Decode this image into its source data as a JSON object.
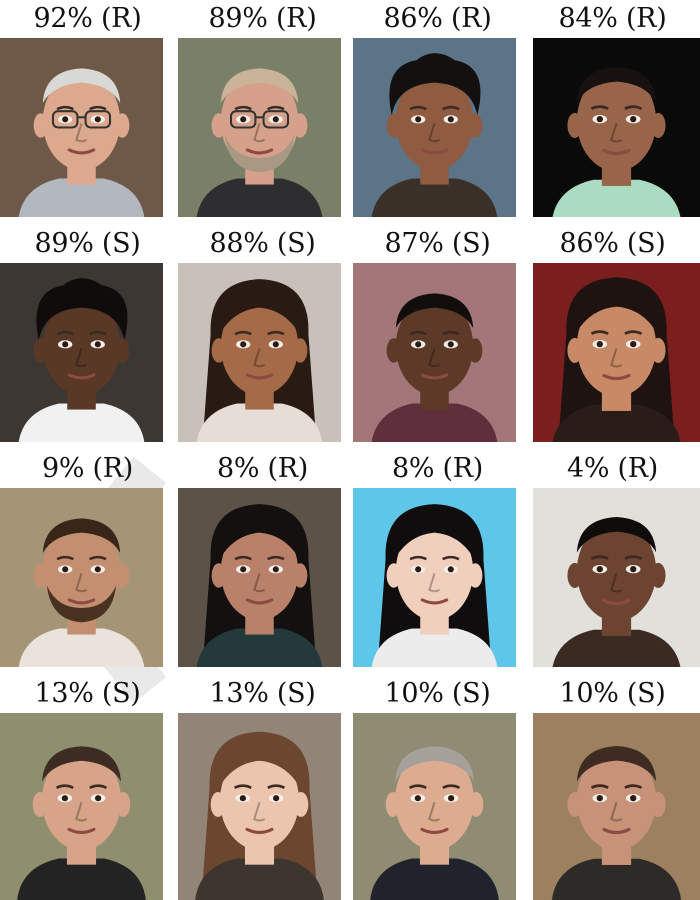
{
  "faces": [
    {
      "label": "92% (R)",
      "bg": "#6e5848",
      "skin": "#dca88e",
      "hair": "#d8d8d4",
      "shirt": "#b3b8bf",
      "hair_style": "short",
      "glasses": true,
      "beard": false
    },
    {
      "label": "89% (R)",
      "bg": "#7a8068",
      "skin": "#d5a18a",
      "hair": "#c9b49a",
      "shirt": "#2e2e30",
      "hair_style": "short",
      "glasses": true,
      "beard": true,
      "beard_color": "#a89884"
    },
    {
      "label": "86% (R)",
      "bg": "#5b7488",
      "skin": "#8f5c42",
      "hair": "#141010",
      "shirt": "#3b3028",
      "hair_style": "curly",
      "glasses": false,
      "beard": false
    },
    {
      "label": "84% (R)",
      "bg": "#0b0a0a",
      "skin": "#99654a",
      "hair": "#17120f",
      "shirt": "#a9dcc1",
      "hair_style": "short",
      "glasses": false,
      "beard": false
    },
    {
      "label": "89% (S)",
      "bg": "#3c3733",
      "skin": "#5a3826",
      "hair": "#0f0c0b",
      "shirt": "#f1f1f1",
      "hair_style": "curly",
      "glasses": false,
      "beard": false
    },
    {
      "label": "88% (S)",
      "bg": "#c7c1ba",
      "skin": "#a56a47",
      "hair": "#2a1a14",
      "shirt": "#e5ddd6",
      "hair_style": "long",
      "glasses": false,
      "beard": false
    },
    {
      "label": "87% (S)",
      "bg": "#a3777a",
      "skin": "#5d3a27",
      "hair": "#120e0c",
      "shirt": "#5f2f3b",
      "hair_style": "short",
      "glasses": false,
      "beard": false
    },
    {
      "label": "86% (S)",
      "bg": "#7a1e1e",
      "skin": "#c88a66",
      "hair": "#1e1310",
      "shirt": "#2a1c18",
      "hair_style": "long",
      "glasses": false,
      "beard": false
    },
    {
      "label": "9% (R)",
      "bg": "#a59577",
      "skin": "#c48e70",
      "hair": "#3a2618",
      "shirt": "#e9e3dc",
      "hair_style": "short",
      "glasses": false,
      "beard": true,
      "beard_color": "#4a3222"
    },
    {
      "label": "8% (R)",
      "bg": "#5c5248",
      "skin": "#b9806a",
      "hair": "#141010",
      "shirt": "#243a3a",
      "hair_style": "long",
      "glasses": false,
      "beard": false
    },
    {
      "label": "8% (R)",
      "bg": "#5ec6e8",
      "skin": "#f1cfbd",
      "hair": "#0f0d0d",
      "shirt": "#ececec",
      "hair_style": "long",
      "glasses": false,
      "beard": false
    },
    {
      "label": "4% (R)",
      "bg": "#e2e0db",
      "skin": "#6d4331",
      "hair": "#100c0b",
      "shirt": "#3a2a22",
      "hair_style": "short",
      "glasses": false,
      "beard": false
    },
    {
      "label": "13% (S)",
      "bg": "#8f8f70",
      "skin": "#d7a48a",
      "hair": "#3c2c24",
      "shirt": "#232323",
      "hair_style": "short",
      "glasses": false,
      "beard": false
    },
    {
      "label": "13% (S)",
      "bg": "#928577",
      "skin": "#ecc5ae",
      "hair": "#6d4630",
      "shirt": "#3c3530",
      "hair_style": "long",
      "glasses": false,
      "beard": false
    },
    {
      "label": "10% (S)",
      "bg": "#8f8c73",
      "skin": "#dcab90",
      "hair": "#a5a09a",
      "shirt": "#20232b",
      "hair_style": "short",
      "glasses": false,
      "beard": false
    },
    {
      "label": "10% (S)",
      "bg": "#9c8060",
      "skin": "#c89278",
      "hair": "#3e2c22",
      "shirt": "#2e2a28",
      "hair_style": "short",
      "glasses": false,
      "beard": false
    }
  ]
}
